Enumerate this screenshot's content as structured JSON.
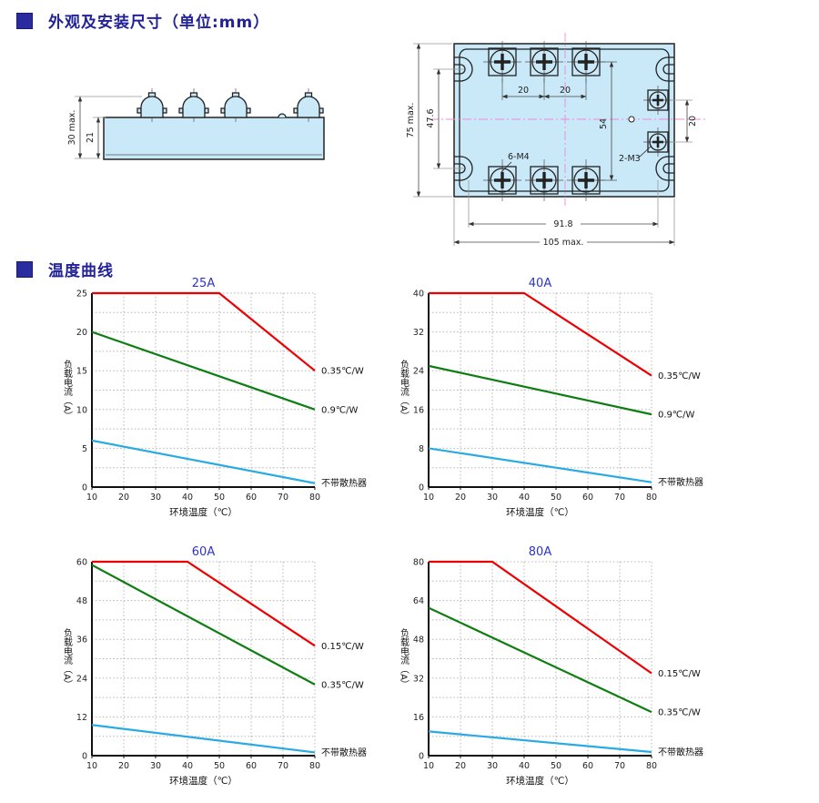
{
  "page": {
    "section1_title": "外观及安装尺寸（单位:mm）",
    "section2_title": "温度曲线"
  },
  "drawings": {
    "side_view": {
      "dim_total_height": "30 max.",
      "dim_body_height": "21"
    },
    "top_view": {
      "dim_total_height": "75 max.",
      "dim_slot_spacing": "47.6",
      "dim_pitch_a": "20",
      "dim_pitch_b": "20",
      "dim_terminal_span": "54",
      "dim_m3_pitch": "20",
      "label_m4": "6-M4",
      "label_m3": "2-M3",
      "dim_mount_width": "91.8",
      "dim_total_width": "105 max."
    }
  },
  "chart_data": [
    {
      "type": "line",
      "title": "25A",
      "xlabel": "环境温度（℃）",
      "ylabel": "负载电流（A）",
      "xlim": [
        10,
        80
      ],
      "ylim": [
        0,
        25
      ],
      "xticks": [
        10,
        20,
        30,
        40,
        50,
        60,
        70,
        80
      ],
      "yticks": [
        0,
        5,
        10,
        15,
        20,
        25
      ],
      "grid": true,
      "legend_position": "right",
      "series": [
        {
          "name": "0.35℃/W",
          "color": "#ee0000",
          "points": [
            [
              10,
              25
            ],
            [
              50,
              25
            ],
            [
              80,
              15
            ]
          ]
        },
        {
          "name": "0.9℃/W",
          "color": "#0e7e12",
          "points": [
            [
              10,
              20
            ],
            [
              80,
              10
            ]
          ]
        },
        {
          "name": "不带散热器",
          "color": "#29abe2",
          "points": [
            [
              10,
              6
            ],
            [
              80,
              0.5
            ]
          ]
        }
      ]
    },
    {
      "type": "line",
      "title": "40A",
      "xlabel": "环境温度（℃）",
      "ylabel": "负载电流（A）",
      "xlim": [
        10,
        80
      ],
      "ylim": [
        0,
        40
      ],
      "xticks": [
        10,
        20,
        30,
        40,
        50,
        60,
        70,
        80
      ],
      "yticks": [
        0,
        8,
        16,
        24,
        32,
        40
      ],
      "grid": true,
      "legend_position": "right",
      "series": [
        {
          "name": "0.35℃/W",
          "color": "#ee0000",
          "points": [
            [
              10,
              40
            ],
            [
              40,
              40
            ],
            [
              80,
              23
            ]
          ]
        },
        {
          "name": "0.9℃/W",
          "color": "#0e7e12",
          "points": [
            [
              10,
              25
            ],
            [
              80,
              15
            ]
          ]
        },
        {
          "name": "不带散热器",
          "color": "#29abe2",
          "points": [
            [
              10,
              8
            ],
            [
              80,
              1
            ]
          ]
        }
      ]
    },
    {
      "type": "line",
      "title": "60A",
      "xlabel": "环境温度（℃）",
      "ylabel": "负载电流（A）",
      "xlim": [
        10,
        80
      ],
      "ylim": [
        0,
        60
      ],
      "xticks": [
        10,
        20,
        30,
        40,
        50,
        60,
        70,
        80
      ],
      "yticks": [
        0,
        12,
        24,
        36,
        48,
        60
      ],
      "grid": true,
      "legend_position": "right",
      "series": [
        {
          "name": "0.15℃/W",
          "color": "#ee0000",
          "points": [
            [
              10,
              60
            ],
            [
              40,
              60
            ],
            [
              80,
              34
            ]
          ]
        },
        {
          "name": "0.35℃/W",
          "color": "#0e7e12",
          "points": [
            [
              10,
              59
            ],
            [
              80,
              22
            ]
          ]
        },
        {
          "name": "不带散热器",
          "color": "#29abe2",
          "points": [
            [
              10,
              9.5
            ],
            [
              80,
              1
            ]
          ]
        }
      ]
    },
    {
      "type": "line",
      "title": "80A",
      "xlabel": "环境温度（℃）",
      "ylabel": "负载电流（A）",
      "xlim": [
        10,
        80
      ],
      "ylim": [
        0,
        80
      ],
      "xticks": [
        10,
        20,
        30,
        40,
        50,
        60,
        70,
        80
      ],
      "yticks": [
        0,
        16,
        32,
        48,
        64,
        80
      ],
      "grid": true,
      "legend_position": "right",
      "series": [
        {
          "name": "0.15℃/W",
          "color": "#ee0000",
          "points": [
            [
              10,
              80
            ],
            [
              30,
              80
            ],
            [
              80,
              34
            ]
          ]
        },
        {
          "name": "0.35℃/W",
          "color": "#0e7e12",
          "points": [
            [
              10,
              61
            ],
            [
              80,
              18
            ]
          ]
        },
        {
          "name": "不带散热器",
          "color": "#29abe2",
          "points": [
            [
              10,
              10
            ],
            [
              80,
              1.5
            ]
          ]
        }
      ]
    }
  ]
}
